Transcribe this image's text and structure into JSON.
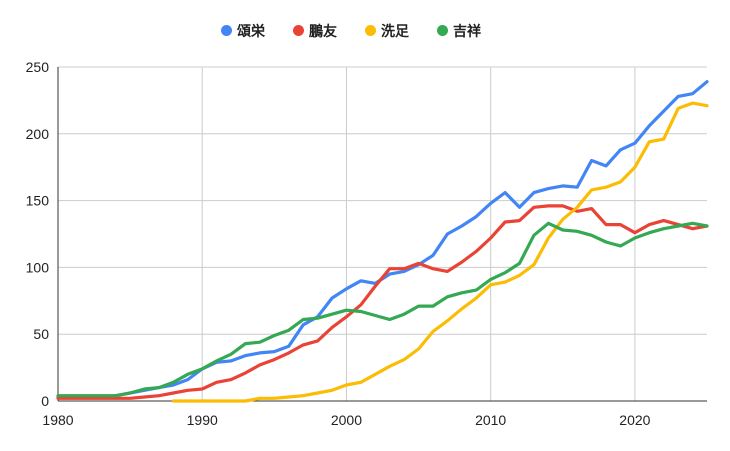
{
  "chart_data": {
    "type": "line",
    "title": "",
    "xlabel": "",
    "ylabel": "",
    "xlim": [
      1980,
      2025
    ],
    "ylim": [
      0,
      250
    ],
    "x_ticks": [
      1980,
      1990,
      2000,
      2010,
      2020
    ],
    "y_ticks": [
      0,
      50,
      100,
      150,
      200,
      250
    ],
    "grid": true,
    "legend_position": "top",
    "series": [
      {
        "name": "頌栄",
        "color": "#4285F4",
        "x": [
          1980,
          1981,
          1982,
          1983,
          1984,
          1985,
          1986,
          1987,
          1988,
          1989,
          1990,
          1991,
          1992,
          1993,
          1994,
          1995,
          1996,
          1997,
          1998,
          1999,
          2000,
          2001,
          2002,
          2003,
          2004,
          2005,
          2006,
          2007,
          2008,
          2009,
          2010,
          2011,
          2012,
          2013,
          2014,
          2015,
          2016,
          2017,
          2018,
          2019,
          2020,
          2021,
          2022,
          2023,
          2024,
          2025
        ],
        "values": [
          3,
          3,
          3,
          3,
          4,
          6,
          8,
          10,
          12,
          16,
          24,
          29,
          30,
          34,
          36,
          37,
          41,
          57,
          63,
          77,
          84,
          90,
          88,
          95,
          97,
          102,
          109,
          125,
          131,
          138,
          148,
          156,
          145,
          156,
          159,
          161,
          160,
          180,
          176,
          188,
          193,
          206,
          217,
          228,
          230,
          239
        ]
      },
      {
        "name": "鵬友",
        "color": "#EA4335",
        "x": [
          1980,
          1981,
          1982,
          1983,
          1984,
          1985,
          1986,
          1987,
          1988,
          1989,
          1990,
          1991,
          1992,
          1993,
          1994,
          1995,
          1996,
          1997,
          1998,
          1999,
          2000,
          2001,
          2002,
          2003,
          2004,
          2005,
          2006,
          2007,
          2008,
          2009,
          2010,
          2011,
          2012,
          2013,
          2014,
          2015,
          2016,
          2017,
          2018,
          2019,
          2020,
          2021,
          2022,
          2023,
          2024,
          2025
        ],
        "values": [
          2,
          2,
          2,
          2,
          2,
          2,
          3,
          4,
          6,
          8,
          9,
          14,
          16,
          21,
          27,
          31,
          36,
          42,
          45,
          55,
          63,
          72,
          86,
          99,
          99,
          103,
          99,
          97,
          104,
          112,
          122,
          134,
          135,
          145,
          146,
          146,
          142,
          144,
          132,
          132,
          126,
          132,
          135,
          132,
          129,
          131
        ]
      },
      {
        "name": "洗足",
        "color": "#FBBC04",
        "x": [
          1988,
          1989,
          1990,
          1991,
          1992,
          1993,
          1994,
          1995,
          1996,
          1997,
          1998,
          1999,
          2000,
          2001,
          2002,
          2003,
          2004,
          2005,
          2006,
          2007,
          2008,
          2009,
          2010,
          2011,
          2012,
          2013,
          2014,
          2015,
          2016,
          2017,
          2018,
          2019,
          2020,
          2021,
          2022,
          2023,
          2024,
          2025
        ],
        "values": [
          0,
          0,
          0,
          0,
          0,
          0,
          2,
          2,
          3,
          4,
          6,
          8,
          12,
          14,
          20,
          26,
          31,
          39,
          52,
          60,
          69,
          77,
          87,
          89,
          94,
          102,
          122,
          136,
          145,
          158,
          160,
          164,
          175,
          194,
          196,
          219,
          223,
          221
        ]
      },
      {
        "name": "吉祥",
        "color": "#34A853",
        "x": [
          1980,
          1981,
          1982,
          1983,
          1984,
          1985,
          1986,
          1987,
          1988,
          1989,
          1990,
          1991,
          1992,
          1993,
          1994,
          1995,
          1996,
          1997,
          1998,
          1999,
          2000,
          2001,
          2002,
          2003,
          2004,
          2005,
          2006,
          2007,
          2008,
          2009,
          2010,
          2011,
          2012,
          2013,
          2014,
          2015,
          2016,
          2017,
          2018,
          2019,
          2020,
          2021,
          2022,
          2023,
          2024,
          2025
        ],
        "values": [
          4,
          4,
          4,
          4,
          4,
          6,
          9,
          10,
          14,
          20,
          24,
          30,
          35,
          43,
          44,
          49,
          53,
          61,
          62,
          65,
          68,
          67,
          64,
          61,
          65,
          71,
          71,
          78,
          81,
          83,
          91,
          96,
          103,
          124,
          133,
          128,
          127,
          124,
          119,
          116,
          122,
          126,
          129,
          131,
          133,
          131
        ]
      }
    ]
  }
}
